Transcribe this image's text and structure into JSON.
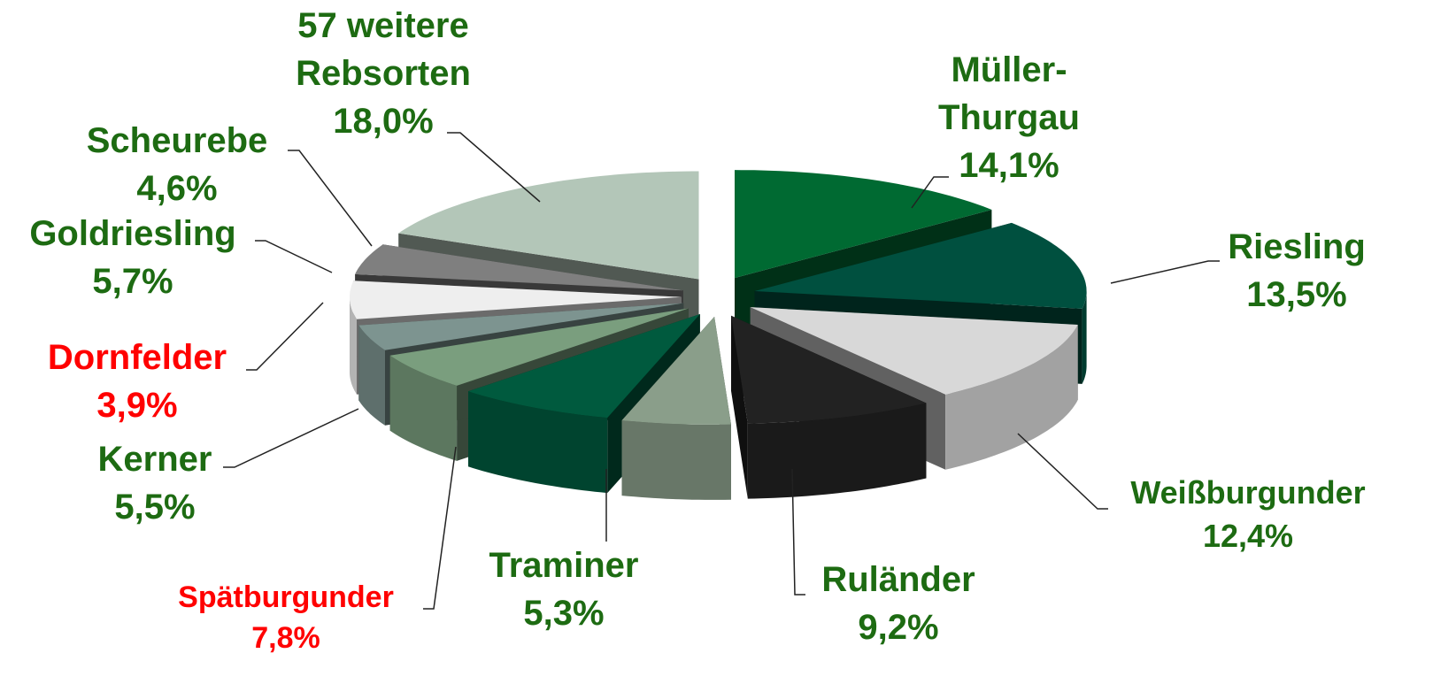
{
  "chart_data": {
    "type": "pie",
    "categories": [
      "Müller-Thurgau",
      "Riesling",
      "Weißburgunder",
      "Ruländer",
      "Traminer",
      "Spätburgunder",
      "Kerner",
      "Dornfelder",
      "Goldriesling",
      "Scheurebe",
      "57 weitere Rebsorten"
    ],
    "values": [
      14.1,
      13.5,
      12.4,
      9.2,
      5.3,
      7.8,
      5.5,
      3.9,
      5.7,
      4.6,
      18.0
    ],
    "value_labels": [
      "14,1%",
      "13,5%",
      "12,4%",
      "9,2%",
      "5,3%",
      "7,8%",
      "5,5%",
      "3,9%",
      "5,7%",
      "4,6%",
      "18,0%"
    ],
    "colors": [
      "#006a32",
      "#00503f",
      "#d8d8d8",
      "#222222",
      "#8a9e8a",
      "#005a3e",
      "#7a9e7e",
      "#7d9490",
      "#eeeeee",
      "#7f7f7f",
      "#b3c6b8"
    ],
    "label_colors": [
      "#1d6b12",
      "#1d6b12",
      "#1d6b12",
      "#1d6b12",
      "#1d6b12",
      "#ff0000",
      "#1d6b12",
      "#ff0000",
      "#1d6b12",
      "#1d6b12",
      "#1d6b12"
    ]
  }
}
